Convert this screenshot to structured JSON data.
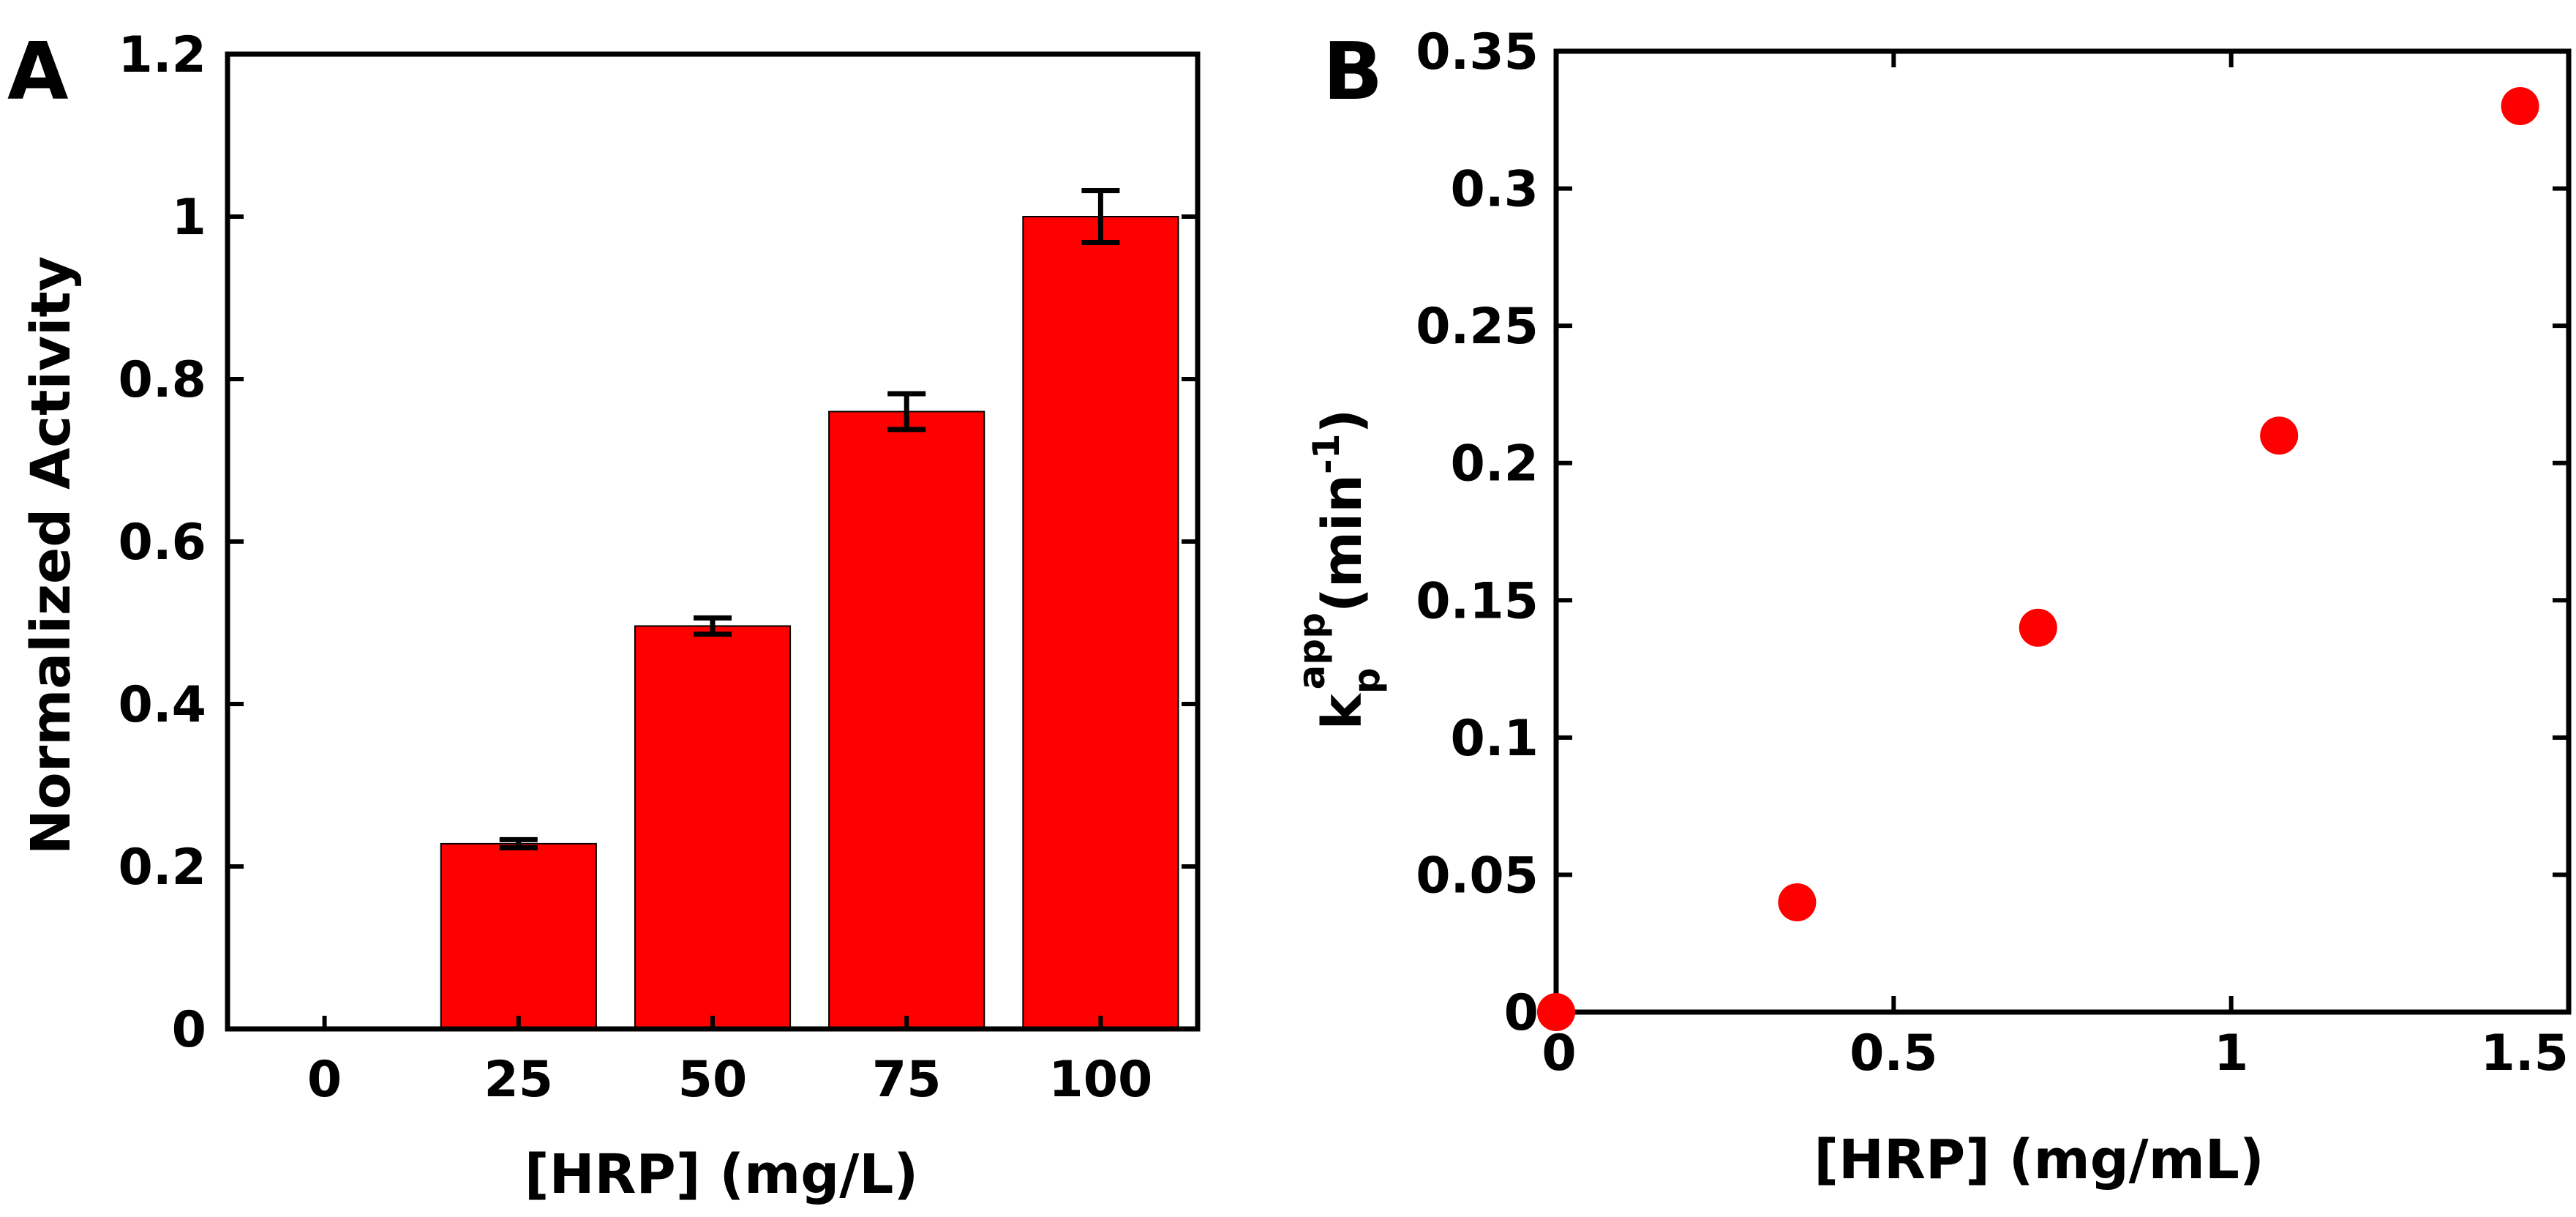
{
  "panel_labels": {
    "a": "A",
    "b": "B"
  },
  "colors": {
    "marker": "#ff0000",
    "axis": "#000000"
  },
  "chart_data": [
    {
      "type": "bar",
      "panel": "A",
      "title": "",
      "xlabel": "[HRP] (mg/L)",
      "ylabel": "Normalized Activity",
      "categories": [
        "0",
        "25",
        "50",
        "75",
        "100"
      ],
      "values": [
        0,
        0.228,
        0.496,
        0.76,
        1.0
      ],
      "errors": [
        0,
        0.005,
        0.01,
        0.022,
        0.032
      ],
      "ylim": [
        0,
        1.2
      ],
      "yticks": [
        0,
        0.2,
        0.4,
        0.6,
        0.8,
        1,
        1.2
      ],
      "ytick_labels": [
        "0",
        "0.2",
        "0.4",
        "0.6",
        "0.8",
        "1",
        "1.2"
      ],
      "grid": false,
      "color": "#ff0000"
    },
    {
      "type": "scatter",
      "panel": "B",
      "title": "",
      "xlabel": "[HRP] (mg/mL)",
      "ylabel": {
        "base": "k",
        "subscript": "p",
        "superscript": "app",
        "unit": "(min",
        "unit_sup": "-1",
        "close": ")"
      },
      "x": [
        0,
        0.357,
        0.714,
        1.071,
        1.428
      ],
      "y": [
        0,
        0.04,
        0.14,
        0.21,
        0.33
      ],
      "xlim": [
        0,
        1.5
      ],
      "ylim": [
        0,
        0.35
      ],
      "xticks": [
        0,
        0.5,
        1,
        1.5
      ],
      "xtick_labels": [
        "0",
        "0.5",
        "1",
        "1.5"
      ],
      "yticks": [
        0,
        0.05,
        0.1,
        0.15,
        0.2,
        0.25,
        0.3,
        0.35
      ],
      "ytick_labels": [
        "0",
        "0.05",
        "0.1",
        "0.15",
        "0.2",
        "0.25",
        "0.3",
        "0.35"
      ],
      "grid": false,
      "color": "#ff0000"
    }
  ]
}
